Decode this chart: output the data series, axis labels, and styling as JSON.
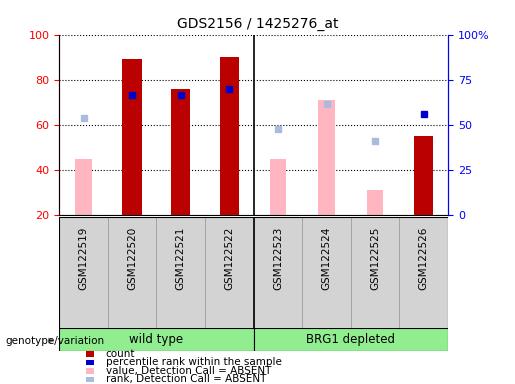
{
  "title": "GDS2156 / 1425276_at",
  "samples": [
    "GSM122519",
    "GSM122520",
    "GSM122521",
    "GSM122522",
    "GSM122523",
    "GSM122524",
    "GSM122525",
    "GSM122526"
  ],
  "count_values": [
    null,
    89,
    76,
    90,
    null,
    null,
    null,
    55
  ],
  "percentile_rank_values": [
    null,
    73,
    73,
    76,
    null,
    null,
    null,
    65
  ],
  "value_absent": [
    45,
    null,
    null,
    null,
    45,
    71,
    31,
    null
  ],
  "rank_absent": [
    63,
    null,
    null,
    null,
    58,
    69,
    53,
    null
  ],
  "ylim_left": [
    20,
    100
  ],
  "ylim_right": [
    0,
    100
  ],
  "yticks_left": [
    20,
    40,
    60,
    80,
    100
  ],
  "yticks_right": [
    0,
    25,
    50,
    75,
    100
  ],
  "ytick_labels_right": [
    "0",
    "25",
    "50",
    "75",
    "100%"
  ],
  "bar_width": 0.4,
  "count_color": "#BB0000",
  "percentile_color": "#0000CC",
  "value_absent_color": "#FFB6C1",
  "rank_absent_color": "#AABBDD",
  "group1_label": "wild type",
  "group2_label": "BRG1 depleted",
  "group_color": "#90EE90",
  "sample_box_color": "#D3D3D3",
  "genotype_label": "genotype/variation"
}
